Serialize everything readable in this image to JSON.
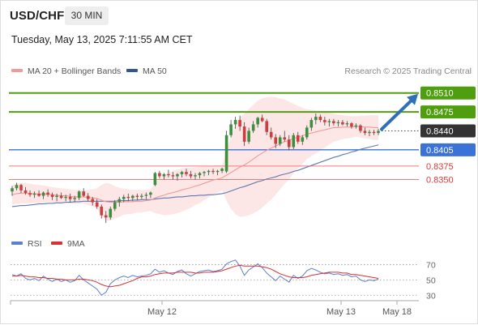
{
  "header": {
    "symbol": "USD/CHF",
    "timeframe": "30 MIN",
    "datetime": "Tuesday, May 13, 2025 7:11:55 AM CET"
  },
  "legend": {
    "ma20": "MA 20 + Bollinger Bands",
    "ma50": "MA 50",
    "rsi": "RSI",
    "rsi_ma": "9MA",
    "credit": "Research © 2025 Trading Central"
  },
  "colors": {
    "resistance": "#4f9e0f",
    "support": "#3a72d8",
    "target_line": "#f07a7a",
    "arrow": "#2f6fb8",
    "current": "#333333",
    "candle_up": "#3c8f3c",
    "candle_down": "#d23c3c",
    "ma20": "#f29a9a",
    "ma50": "#5f7bb3",
    "bollinger_fill": "#fde6e6",
    "rsi": "#5b7fd1",
    "rsi_ma": "#d93030"
  },
  "chart_data": [
    {
      "type": "candlestick",
      "ylim": [
        0.8255,
        0.8535
      ],
      "price_levels": [
        {
          "label": "0.8510",
          "value": 0.851,
          "kind": "resistance"
        },
        {
          "label": "0.8475",
          "value": 0.8475,
          "kind": "resistance"
        },
        {
          "label": "0.8440",
          "value": 0.844,
          "kind": "current"
        },
        {
          "label": "0.8405",
          "value": 0.8405,
          "kind": "support"
        },
        {
          "label": "0.8375",
          "value": 0.8375,
          "kind": "target"
        },
        {
          "label": "0.8350",
          "value": 0.835,
          "kind": "target"
        }
      ],
      "x_ticks": [
        "May 12",
        "May 13",
        "May 18"
      ],
      "ohlc": [
        [
          0.8328,
          0.8338,
          0.832,
          0.8334
        ],
        [
          0.8334,
          0.8344,
          0.833,
          0.834
        ],
        [
          0.834,
          0.8342,
          0.8325,
          0.833
        ],
        [
          0.833,
          0.8336,
          0.8322,
          0.8325
        ],
        [
          0.8325,
          0.833,
          0.8318,
          0.8322
        ],
        [
          0.8322,
          0.8328,
          0.8316,
          0.8324
        ],
        [
          0.8324,
          0.833,
          0.8318,
          0.832
        ],
        [
          0.832,
          0.8328,
          0.8314,
          0.8326
        ],
        [
          0.8326,
          0.8332,
          0.8318,
          0.8322
        ],
        [
          0.8322,
          0.8326,
          0.8312,
          0.8318
        ],
        [
          0.8318,
          0.8324,
          0.831,
          0.832
        ],
        [
          0.832,
          0.8326,
          0.8314,
          0.8316
        ],
        [
          0.8316,
          0.8322,
          0.831,
          0.8318
        ],
        [
          0.8318,
          0.8324,
          0.8308,
          0.8314
        ],
        [
          0.8314,
          0.832,
          0.8308,
          0.8316
        ],
        [
          0.8316,
          0.833,
          0.8312,
          0.8328
        ],
        [
          0.8328,
          0.8334,
          0.8318,
          0.832
        ],
        [
          0.832,
          0.8325,
          0.831,
          0.8314
        ],
        [
          0.8314,
          0.8318,
          0.8302,
          0.8308
        ],
        [
          0.8308,
          0.8314,
          0.8296,
          0.83
        ],
        [
          0.83,
          0.8304,
          0.8278,
          0.8284
        ],
        [
          0.8284,
          0.8292,
          0.827,
          0.828
        ],
        [
          0.828,
          0.83,
          0.8276,
          0.8296
        ],
        [
          0.8296,
          0.8312,
          0.8292,
          0.8308
        ],
        [
          0.8308,
          0.8318,
          0.83,
          0.8314
        ],
        [
          0.8314,
          0.8322,
          0.8308,
          0.8318
        ],
        [
          0.8318,
          0.8324,
          0.831,
          0.8316
        ],
        [
          0.8316,
          0.8322,
          0.831,
          0.832
        ],
        [
          0.832,
          0.8324,
          0.8312,
          0.8318
        ],
        [
          0.8318,
          0.8324,
          0.8314,
          0.832
        ],
        [
          0.832,
          0.8326,
          0.8314,
          0.8322
        ],
        [
          0.8322,
          0.8328,
          0.8316,
          0.8326
        ],
        [
          0.834,
          0.8364,
          0.8338,
          0.8362
        ],
        [
          0.8362,
          0.8366,
          0.8352,
          0.8356
        ],
        [
          0.8356,
          0.8362,
          0.835,
          0.836
        ],
        [
          0.836,
          0.8368,
          0.8354,
          0.8358
        ],
        [
          0.8358,
          0.8364,
          0.835,
          0.8356
        ],
        [
          0.8356,
          0.8362,
          0.8348,
          0.836
        ],
        [
          0.836,
          0.8366,
          0.8354,
          0.8364
        ],
        [
          0.8364,
          0.837,
          0.8356,
          0.836
        ],
        [
          0.836,
          0.8366,
          0.8352,
          0.8356
        ],
        [
          0.8356,
          0.8362,
          0.835,
          0.8358
        ],
        [
          0.8358,
          0.8364,
          0.8352,
          0.8362
        ],
        [
          0.8362,
          0.8366,
          0.8356,
          0.8364
        ],
        [
          0.8364,
          0.8368,
          0.8358,
          0.8366
        ],
        [
          0.8366,
          0.837,
          0.836,
          0.8364
        ],
        [
          0.8364,
          0.8368,
          0.8358,
          0.8366
        ],
        [
          0.8366,
          0.8372,
          0.8362,
          0.837
        ],
        [
          0.8365,
          0.844,
          0.8362,
          0.8432
        ],
        [
          0.8432,
          0.846,
          0.8428,
          0.8452
        ],
        [
          0.8452,
          0.8466,
          0.8444,
          0.846
        ],
        [
          0.846,
          0.8468,
          0.844,
          0.8448
        ],
        [
          0.8448,
          0.8456,
          0.8412,
          0.842
        ],
        [
          0.842,
          0.8446,
          0.8416,
          0.844
        ],
        [
          0.844,
          0.8458,
          0.8436,
          0.8452
        ],
        [
          0.8452,
          0.8466,
          0.8446,
          0.8464
        ],
        [
          0.8464,
          0.847,
          0.8456,
          0.8458
        ],
        [
          0.8458,
          0.8462,
          0.8432,
          0.8438
        ],
        [
          0.8438,
          0.8446,
          0.8424,
          0.8428
        ],
        [
          0.8428,
          0.8434,
          0.8408,
          0.8416
        ],
        [
          0.8416,
          0.8432,
          0.8412,
          0.8428
        ],
        [
          0.8428,
          0.844,
          0.842,
          0.8424
        ],
        [
          0.8424,
          0.8432,
          0.8404,
          0.841
        ],
        [
          0.841,
          0.8436,
          0.8406,
          0.8432
        ],
        [
          0.8432,
          0.8438,
          0.8416,
          0.842
        ],
        [
          0.842,
          0.8432,
          0.8414,
          0.8428
        ],
        [
          0.8428,
          0.845,
          0.8424,
          0.8446
        ],
        [
          0.8446,
          0.8464,
          0.844,
          0.846
        ],
        [
          0.846,
          0.8472,
          0.8452,
          0.8466
        ],
        [
          0.8466,
          0.847,
          0.8456,
          0.846
        ],
        [
          0.846,
          0.8466,
          0.845,
          0.8456
        ],
        [
          0.8456,
          0.8462,
          0.8448,
          0.8458
        ],
        [
          0.8458,
          0.8462,
          0.845,
          0.8454
        ],
        [
          0.8454,
          0.846,
          0.8448,
          0.8456
        ],
        [
          0.8456,
          0.846,
          0.845,
          0.8452
        ],
        [
          0.8452,
          0.8458,
          0.8448,
          0.8454
        ],
        [
          0.8454,
          0.8456,
          0.8444,
          0.8448
        ],
        [
          0.8448,
          0.8454,
          0.8444,
          0.845
        ],
        [
          0.845,
          0.8452,
          0.8436,
          0.844
        ],
        [
          0.844,
          0.8446,
          0.8432,
          0.8436
        ],
        [
          0.8436,
          0.8442,
          0.843,
          0.8438
        ],
        [
          0.8438,
          0.8442,
          0.8432,
          0.8436
        ],
        [
          0.8436,
          0.8444,
          0.8432,
          0.844
        ]
      ],
      "ma20": [
        0.8322,
        0.8324,
        0.8325,
        0.8325,
        0.8324,
        0.8324,
        0.8323,
        0.8323,
        0.8323,
        0.8322,
        0.8321,
        0.832,
        0.832,
        0.8319,
        0.8318,
        0.8318,
        0.8318,
        0.8317,
        0.8316,
        0.8315,
        0.8312,
        0.8309,
        0.8308,
        0.8308,
        0.8308,
        0.8309,
        0.8309,
        0.8309,
        0.831,
        0.831,
        0.8311,
        0.8312,
        0.8316,
        0.8319,
        0.8321,
        0.8324,
        0.8326,
        0.8328,
        0.8331,
        0.8333,
        0.8335,
        0.8338,
        0.834,
        0.8343,
        0.8346,
        0.8349,
        0.8351,
        0.8353,
        0.8358,
        0.8363,
        0.8368,
        0.8373,
        0.8377,
        0.8382,
        0.8388,
        0.8394,
        0.8399,
        0.8404,
        0.8408,
        0.8412,
        0.8416,
        0.842,
        0.8422,
        0.8426,
        0.8428,
        0.8431,
        0.8434,
        0.8436,
        0.8438,
        0.844,
        0.8442,
        0.8444,
        0.8446,
        0.8446,
        0.8447,
        0.8447,
        0.8447,
        0.8448,
        0.8448,
        0.8447,
        0.8447,
        0.8446,
        0.8446
      ],
      "ma50": [
        0.83,
        0.8301,
        0.8302,
        0.8302,
        0.8303,
        0.8304,
        0.8305,
        0.8305,
        0.8306,
        0.8306,
        0.8307,
        0.8307,
        0.8308,
        0.8308,
        0.8309,
        0.8309,
        0.831,
        0.831,
        0.831,
        0.831,
        0.831,
        0.831,
        0.831,
        0.831,
        0.8311,
        0.8311,
        0.8311,
        0.8312,
        0.8312,
        0.8313,
        0.8313,
        0.8313,
        0.8314,
        0.8315,
        0.8316,
        0.8316,
        0.8317,
        0.8318,
        0.8318,
        0.8319,
        0.832,
        0.832,
        0.8321,
        0.8321,
        0.8322,
        0.8322,
        0.8323,
        0.8324,
        0.8326,
        0.8329,
        0.8332,
        0.8335,
        0.8337,
        0.834,
        0.8343,
        0.8346,
        0.8348,
        0.8351,
        0.8353,
        0.8355,
        0.8358,
        0.836,
        0.8362,
        0.8365,
        0.8367,
        0.837,
        0.8373,
        0.8376,
        0.8379,
        0.8382,
        0.8385,
        0.8388,
        0.8391,
        0.8393,
        0.8396,
        0.8398,
        0.8401,
        0.8403,
        0.8406,
        0.8408,
        0.841,
        0.8412,
        0.8414
      ],
      "bollinger_upper": [
        0.834,
        0.8343,
        0.8344,
        0.8344,
        0.8342,
        0.8341,
        0.834,
        0.8339,
        0.8338,
        0.8336,
        0.8335,
        0.8334,
        0.8333,
        0.8332,
        0.8331,
        0.8331,
        0.833,
        0.8331,
        0.8332,
        0.8334,
        0.834,
        0.8344,
        0.8342,
        0.8338,
        0.8335,
        0.8333,
        0.8332,
        0.8331,
        0.8331,
        0.8331,
        0.8331,
        0.8332,
        0.8344,
        0.8352,
        0.8358,
        0.8363,
        0.8366,
        0.8368,
        0.8371,
        0.8372,
        0.8372,
        0.8373,
        0.8374,
        0.8374,
        0.8375,
        0.8375,
        0.8376,
        0.8376,
        0.8405,
        0.843,
        0.845,
        0.8465,
        0.8472,
        0.848,
        0.8488,
        0.8496,
        0.85,
        0.8502,
        0.8503,
        0.8502,
        0.85,
        0.8498,
        0.8494,
        0.849,
        0.8486,
        0.8483,
        0.848,
        0.8479,
        0.8478,
        0.8476,
        0.8475,
        0.8473,
        0.8472,
        0.847,
        0.8469,
        0.8468,
        0.8467,
        0.8467,
        0.8468,
        0.8468,
        0.8469,
        0.8469,
        0.8469
      ],
      "bollinger_lower": [
        0.8304,
        0.8305,
        0.8306,
        0.8306,
        0.8306,
        0.8307,
        0.8306,
        0.8307,
        0.8308,
        0.8308,
        0.8307,
        0.8306,
        0.8307,
        0.8306,
        0.8305,
        0.8305,
        0.8306,
        0.8303,
        0.83,
        0.8296,
        0.8284,
        0.8274,
        0.8274,
        0.8278,
        0.8281,
        0.8285,
        0.8286,
        0.8287,
        0.8289,
        0.8289,
        0.8291,
        0.8292,
        0.8288,
        0.8286,
        0.8284,
        0.8285,
        0.8286,
        0.8288,
        0.8291,
        0.8294,
        0.8298,
        0.8303,
        0.8306,
        0.8312,
        0.8317,
        0.8323,
        0.8326,
        0.833,
        0.8311,
        0.8296,
        0.8286,
        0.8281,
        0.8282,
        0.8284,
        0.8288,
        0.8292,
        0.8298,
        0.8306,
        0.8313,
        0.8322,
        0.8332,
        0.8342,
        0.835,
        0.8362,
        0.837,
        0.8379,
        0.8388,
        0.8393,
        0.8398,
        0.8404,
        0.8409,
        0.8415,
        0.842,
        0.8422,
        0.8425,
        0.8426,
        0.8427,
        0.8429,
        0.8428,
        0.8426,
        0.8425,
        0.8423,
        0.8423
      ]
    },
    {
      "type": "line",
      "ylim": [
        25,
        80
      ],
      "y_ticks": [
        70,
        50,
        30
      ],
      "series": [
        {
          "name": "RSI",
          "values": [
            57,
            55,
            58,
            52,
            50,
            52,
            49,
            55,
            51,
            48,
            51,
            48,
            50,
            47,
            49,
            56,
            50,
            46,
            42,
            38,
            30,
            34,
            45,
            50,
            53,
            55,
            53,
            56,
            54,
            55,
            56,
            58,
            64,
            60,
            62,
            59,
            57,
            61,
            63,
            58,
            55,
            58,
            61,
            62,
            63,
            61,
            62,
            64,
            71,
            74,
            76,
            68,
            56,
            63,
            67,
            71,
            66,
            59,
            54,
            49,
            55,
            51,
            47,
            56,
            52,
            55,
            62,
            65,
            63,
            60,
            58,
            59,
            57,
            58,
            56,
            57,
            54,
            55,
            50,
            48,
            50,
            49,
            51
          ]
        },
        {
          "name": "9MA",
          "values": [
            55,
            55,
            56,
            55,
            54,
            54,
            53,
            53,
            52,
            52,
            51,
            51,
            50,
            50,
            50,
            51,
            51,
            50,
            49,
            47,
            44,
            42,
            41,
            42,
            43,
            45,
            47,
            49,
            52,
            54,
            54,
            55,
            57,
            58,
            59,
            59,
            59,
            60,
            60,
            60,
            60,
            59,
            59,
            60,
            60,
            60,
            61,
            62,
            64,
            66,
            68,
            69,
            68,
            68,
            68,
            68,
            67,
            66,
            64,
            61,
            58,
            56,
            54,
            53,
            53,
            53,
            54,
            56,
            57,
            58,
            59,
            60,
            60,
            60,
            59,
            59,
            57,
            57,
            56,
            55,
            54,
            53,
            52
          ]
        }
      ]
    }
  ]
}
